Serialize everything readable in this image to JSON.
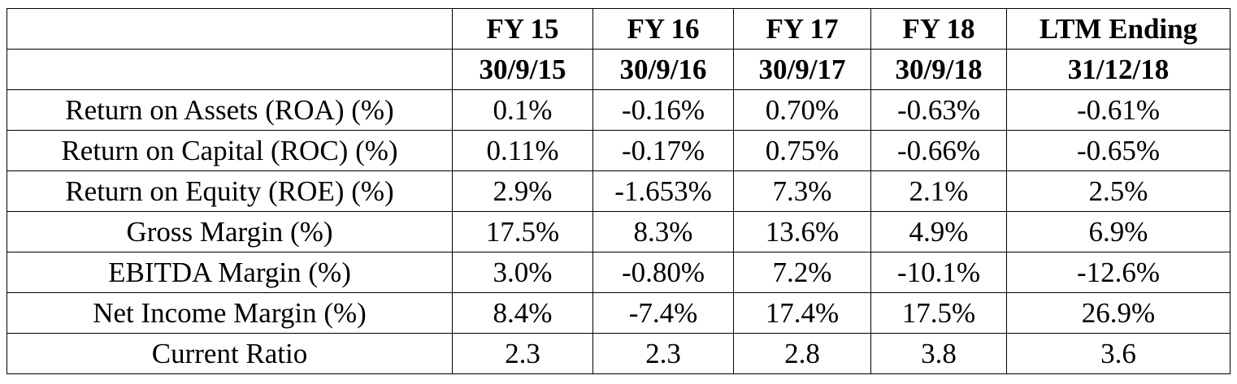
{
  "table": {
    "header_row1": [
      "",
      "FY 15",
      "FY 16",
      "FY 17",
      "FY 18",
      "LTM Ending"
    ],
    "header_row2": [
      "",
      "30/9/15",
      "30/9/16",
      "30/9/17",
      "30/9/18",
      "31/12/18"
    ],
    "rows": [
      {
        "label": "Return on Assets (ROA) (%)",
        "values": [
          "0.1%",
          "-0.16%",
          "0.70%",
          "-0.63%",
          "-0.61%"
        ]
      },
      {
        "label": "Return on Capital (ROC) (%)",
        "values": [
          "0.11%",
          "-0.17%",
          "0.75%",
          "-0.66%",
          "-0.65%"
        ]
      },
      {
        "label": "Return on Equity (ROE) (%)",
        "values": [
          "2.9%",
          "-1.653%",
          "7.3%",
          "2.1%",
          "2.5%"
        ]
      },
      {
        "label": "Gross Margin (%)",
        "values": [
          "17.5%",
          "8.3%",
          "13.6%",
          "4.9%",
          "6.9%"
        ]
      },
      {
        "label": "EBITDA Margin (%)",
        "values": [
          "3.0%",
          "-0.80%",
          "7.2%",
          "-10.1%",
          "-12.6%"
        ]
      },
      {
        "label": "Net Income Margin (%)",
        "values": [
          "8.4%",
          "-7.4%",
          "17.4%",
          "17.5%",
          "26.9%"
        ]
      },
      {
        "label": "Current Ratio",
        "values": [
          "2.3",
          "2.3",
          "2.8",
          "3.8",
          "3.6"
        ]
      }
    ]
  }
}
